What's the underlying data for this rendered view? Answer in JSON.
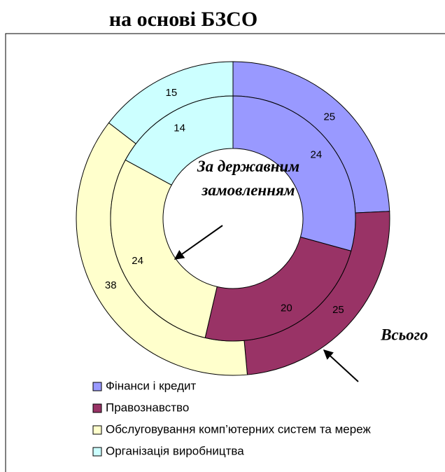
{
  "chart_data": {
    "type": "doughnut",
    "title": "на основі БЗСО",
    "categories": [
      "Фінанси і кредит",
      "Правознавство",
      "Обслуговування комп’ютерних систем та мереж",
      "Організація виробництва"
    ],
    "colors": [
      "#9999ff",
      "#993366",
      "#ffffcc",
      "#ccffff"
    ],
    "series": [
      {
        "name": "Всього",
        "values": [
          25,
          25,
          38,
          15
        ]
      },
      {
        "name": "За державним замовленням",
        "values": [
          24,
          20,
          24,
          14
        ]
      }
    ]
  }
}
